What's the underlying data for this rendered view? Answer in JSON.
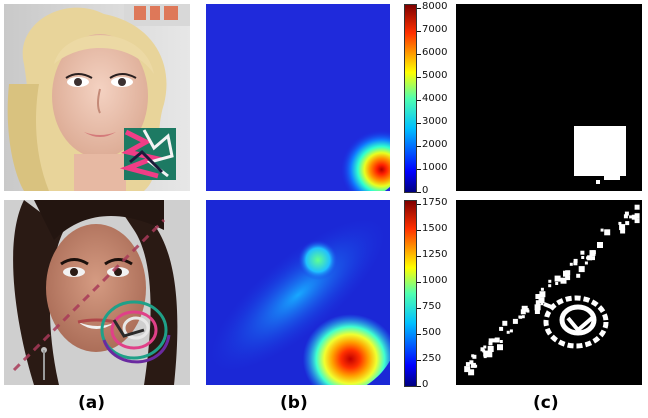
{
  "figure": {
    "labels": {
      "a": "(a)",
      "b": "(b)",
      "c": "(c)"
    },
    "top_colorbar_ticks": [
      "8000",
      "7000",
      "6000",
      "5000",
      "4000",
      "3000",
      "2000",
      "1000",
      "0"
    ],
    "bottom_colorbar_ticks": [
      "1750",
      "1500",
      "1250",
      "1000",
      "750",
      "500",
      "250",
      "0"
    ],
    "colormap": [
      "#00007f",
      "#0000ff",
      "#0080ff",
      "#00ffff",
      "#80ff80",
      "#ffff00",
      "#ff8000",
      "#ff0000",
      "#7f0000"
    ]
  }
}
